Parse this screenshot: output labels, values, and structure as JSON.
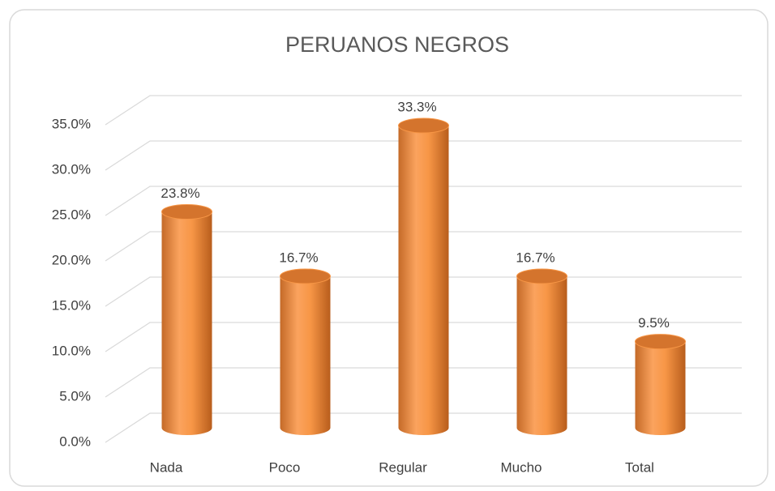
{
  "chart_data": {
    "type": "bar",
    "title": "PERUANOS NEGROS",
    "categories": [
      "Nada",
      "Poco",
      "Regular",
      "Mucho",
      "Total"
    ],
    "values": [
      23.8,
      16.7,
      33.3,
      16.7,
      9.5
    ],
    "value_labels": [
      "23.8%",
      "16.7%",
      "33.3%",
      "16.7%",
      "9.5%"
    ],
    "color": "#f79646",
    "ylim": [
      0,
      35
    ],
    "yticks": [
      {
        "value": 0,
        "label": "0.0%"
      },
      {
        "value": 5,
        "label": "5.0%"
      },
      {
        "value": 10,
        "label": "10.0%"
      },
      {
        "value": 15,
        "label": "15.0%"
      },
      {
        "value": 20,
        "label": "20.0%"
      },
      {
        "value": 25,
        "label": "25.0%"
      },
      {
        "value": 30,
        "label": "30.0%"
      },
      {
        "value": 35,
        "label": "35.0%"
      }
    ],
    "grid": true
  }
}
